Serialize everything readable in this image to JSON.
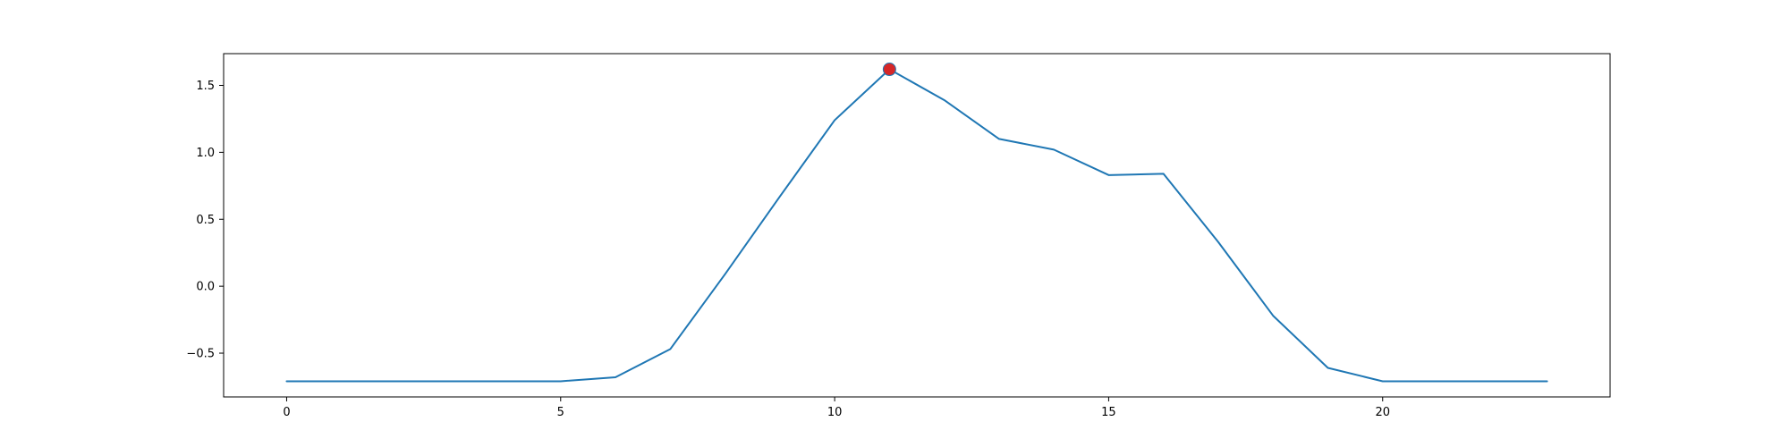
{
  "chart_data": {
    "type": "line",
    "x": [
      0,
      1,
      2,
      3,
      4,
      5,
      6,
      7,
      8,
      9,
      10,
      11,
      12,
      13,
      14,
      15,
      16,
      17,
      18,
      19,
      20,
      21,
      22,
      23
    ],
    "series": [
      {
        "values": [
          -0.71,
          -0.71,
          -0.71,
          -0.71,
          -0.71,
          -0.71,
          -0.68,
          -0.47,
          0.09,
          0.67,
          1.24,
          1.62,
          1.39,
          1.1,
          1.02,
          0.83,
          0.84,
          0.33,
          -0.22,
          -0.61,
          -0.71,
          -0.71,
          -0.71,
          -0.71
        ],
        "color": "#1f77b4"
      }
    ],
    "highlight": {
      "x": 11,
      "y": 1.62,
      "color": "#d62728"
    },
    "xlim": [
      -1.15,
      24.15
    ],
    "ylim": [
      -0.827,
      1.737
    ],
    "xticks": [
      0,
      5,
      10,
      15,
      20
    ],
    "yticks": [
      -0.5,
      0.0,
      0.5,
      1.0,
      1.5
    ],
    "xtick_labels": [
      "0",
      "5",
      "10",
      "15",
      "20"
    ],
    "ytick_labels": [
      "−0.5",
      "0.0",
      "0.5",
      "1.0",
      "1.5"
    ],
    "grid": false,
    "title": "",
    "xlabel": "",
    "ylabel": ""
  }
}
